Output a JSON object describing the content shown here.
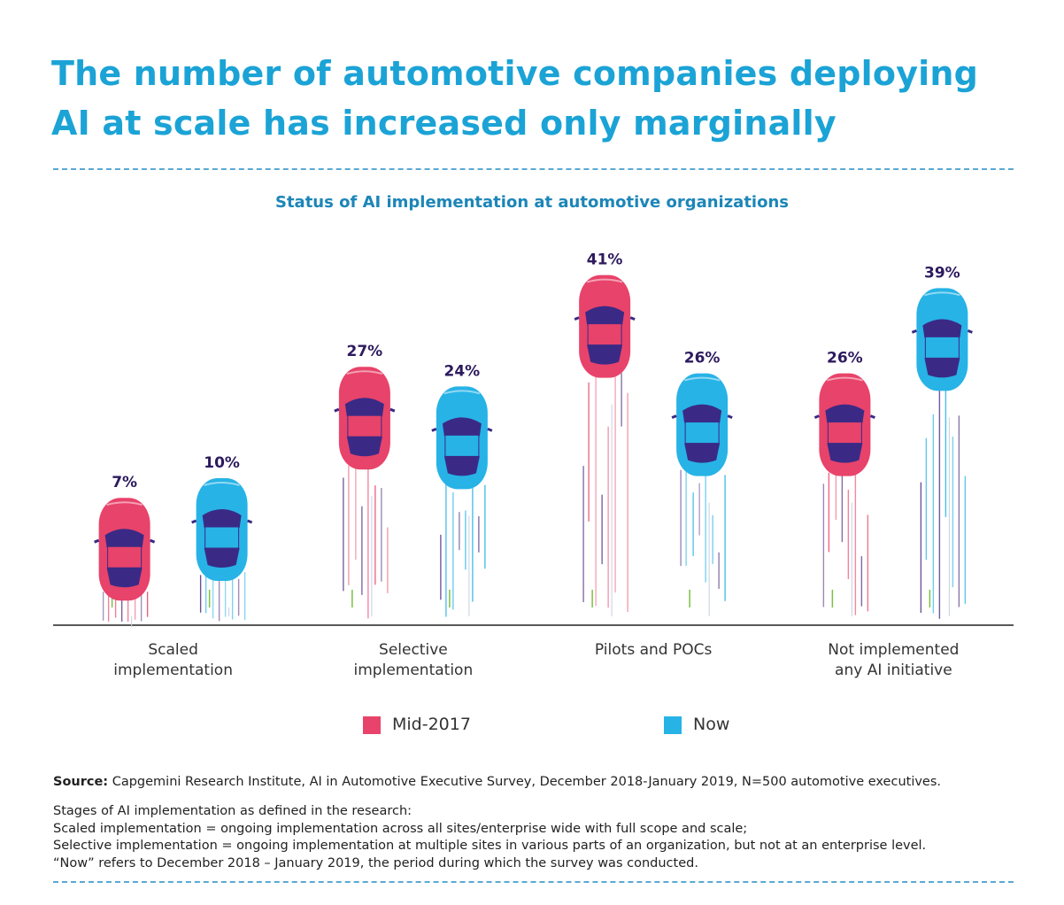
{
  "chart_data": {
    "type": "bar",
    "title": "The number of automotive companies deploying AI at scale has increased only marginally",
    "subtitle": "Status of AI implementation at automotive organizations",
    "categories": [
      "Scaled implementation",
      "Selective implementation",
      "Pilots and POCs",
      "Not implemented any AI initiative"
    ],
    "series": [
      {
        "name": "Mid-2017",
        "color": "#e8436a",
        "values": [
          7,
          27,
          41,
          26
        ],
        "value_labels": [
          "7%",
          "27%",
          "41%",
          "26%"
        ]
      },
      {
        "name": "Now",
        "color": "#27b3e6",
        "values": [
          10,
          24,
          26,
          39
        ],
        "value_labels": [
          "10%",
          "24%",
          "26%",
          "39%"
        ]
      }
    ],
    "source_label": "Source:",
    "source": "Capgemini Research Institute, AI in Automotive Executive Survey, December 2018-January 2019, N=500 automotive executives.",
    "notes": [
      "Stages of AI implementation as defined in the research:",
      "Scaled implementation = ongoing implementation across all sites/enterprise wide with full scope and scale;",
      "Selective implementation = ongoing implementation at multiple sites in various parts of an organization, but not at an enterprise level.",
      "“Now” refers to December 2018 – January 2019, the period during which the survey was conducted."
    ]
  }
}
